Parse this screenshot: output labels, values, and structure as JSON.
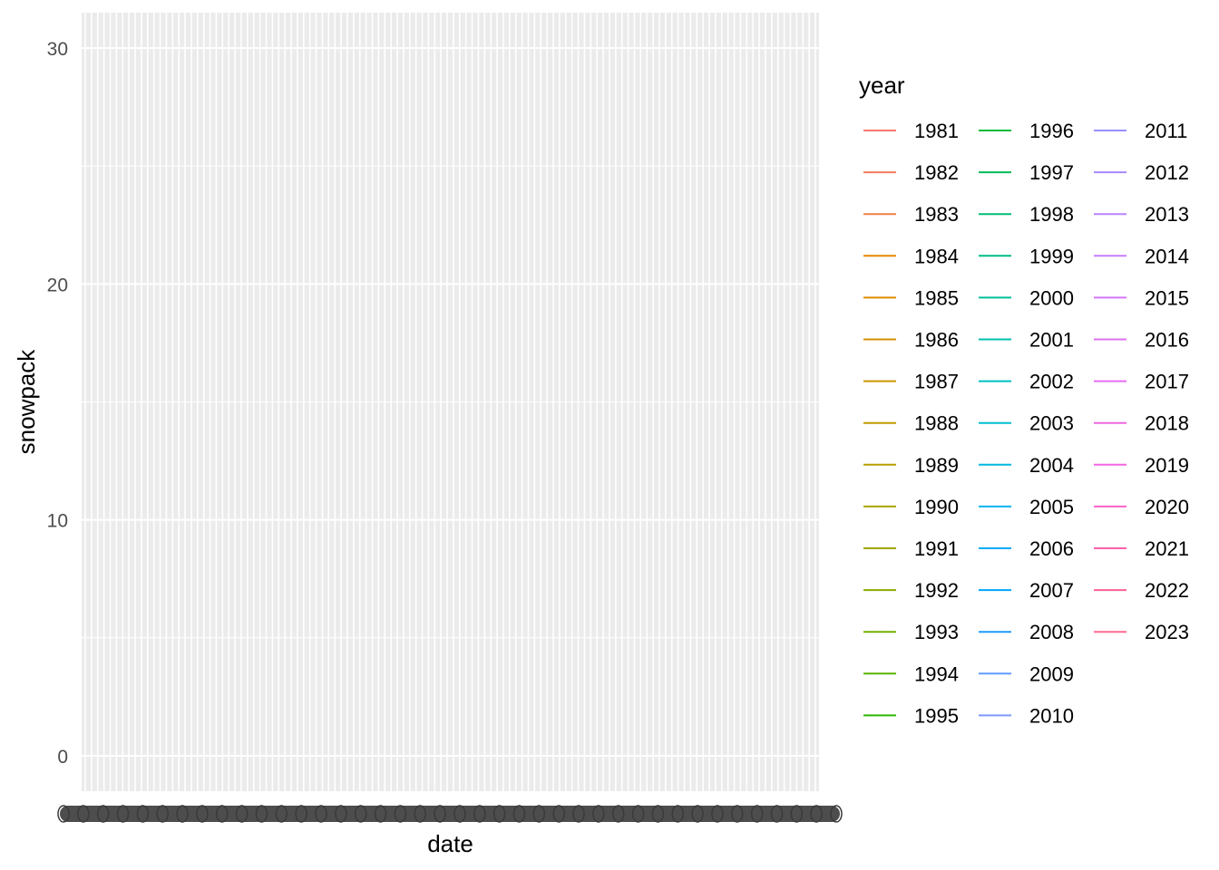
{
  "chart_data": {
    "type": "line",
    "title": "",
    "xlabel": "date",
    "ylabel": "snowpack",
    "ylim": [
      -1.5,
      31.5
    ],
    "y_ticks": [
      0,
      10,
      20,
      30
    ],
    "x_ticks_overplotted": true,
    "grid": true,
    "panel_background": "#ebebeb",
    "legend": {
      "title": "year",
      "placement": "right",
      "columns": 3,
      "items_per_column": 15
    },
    "series": [
      {
        "name": "1981",
        "color": "#F8766D",
        "values": []
      },
      {
        "name": "1982",
        "color": "#F47C5C",
        "values": []
      },
      {
        "name": "1983",
        "color": "#EF8249",
        "values": []
      },
      {
        "name": "1984",
        "color": "#E58700",
        "values": []
      },
      {
        "name": "1985",
        "color": "#DE8C00",
        "values": []
      },
      {
        "name": "1986",
        "color": "#D59100",
        "values": []
      },
      {
        "name": "1987",
        "color": "#CC9600",
        "values": []
      },
      {
        "name": "1988",
        "color": "#C09B00",
        "values": []
      },
      {
        "name": "1989",
        "color": "#B79F00",
        "values": []
      },
      {
        "name": "1990",
        "color": "#A9A400",
        "values": []
      },
      {
        "name": "1991",
        "color": "#9DA700",
        "values": []
      },
      {
        "name": "1992",
        "color": "#8BAB00",
        "values": []
      },
      {
        "name": "1993",
        "color": "#76AF00",
        "values": []
      },
      {
        "name": "1994",
        "color": "#5BB300",
        "values": []
      },
      {
        "name": "1995",
        "color": "#2EB700",
        "values": []
      },
      {
        "name": "1996",
        "color": "#00B938",
        "values": []
      },
      {
        "name": "1997",
        "color": "#00BB59",
        "values": []
      },
      {
        "name": "1998",
        "color": "#00BD73",
        "values": []
      },
      {
        "name": "1999",
        "color": "#00BE88",
        "values": []
      },
      {
        "name": "2000",
        "color": "#00BF9C",
        "values": []
      },
      {
        "name": "2001",
        "color": "#00C0AF",
        "values": []
      },
      {
        "name": "2002",
        "color": "#00C0C0",
        "values": []
      },
      {
        "name": "2003",
        "color": "#00BDD0",
        "values": []
      },
      {
        "name": "2004",
        "color": "#00B9E0",
        "values": []
      },
      {
        "name": "2005",
        "color": "#00B4EF",
        "values": []
      },
      {
        "name": "2006",
        "color": "#00ADFA",
        "values": []
      },
      {
        "name": "2007",
        "color": "#00A5FF",
        "values": []
      },
      {
        "name": "2008",
        "color": "#1E9BFF",
        "values": []
      },
      {
        "name": "2009",
        "color": "#619CFF",
        "values": []
      },
      {
        "name": "2010",
        "color": "#7D96FF",
        "values": []
      },
      {
        "name": "2011",
        "color": "#958FFF",
        "values": []
      },
      {
        "name": "2012",
        "color": "#A987FF",
        "values": []
      },
      {
        "name": "2013",
        "color": "#B983FF",
        "values": []
      },
      {
        "name": "2014",
        "color": "#C77CFF",
        "values": []
      },
      {
        "name": "2015",
        "color": "#D376F8",
        "values": []
      },
      {
        "name": "2016",
        "color": "#DE70EE",
        "values": []
      },
      {
        "name": "2017",
        "color": "#E76BF3",
        "values": []
      },
      {
        "name": "2018",
        "color": "#EF67E0",
        "values": []
      },
      {
        "name": "2019",
        "color": "#F564E3",
        "values": []
      },
      {
        "name": "2020",
        "color": "#F962C5",
        "values": []
      },
      {
        "name": "2021",
        "color": "#FC61AB",
        "values": []
      },
      {
        "name": "2022",
        "color": "#FE6193",
        "values": []
      },
      {
        "name": "2023",
        "color": "#FF6C91",
        "values": []
      }
    ]
  }
}
